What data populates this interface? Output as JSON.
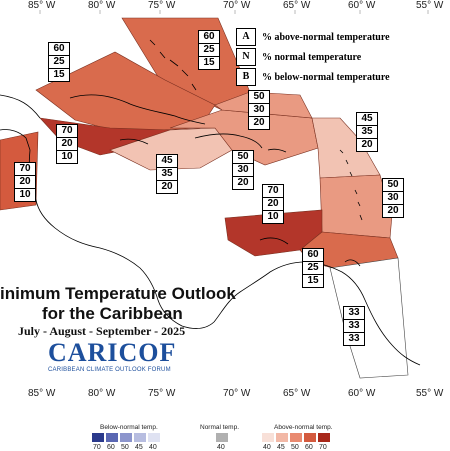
{
  "map": {
    "title_line1": "inimum Temperature Outlook",
    "title_line2": "for the Caribbean",
    "period": "July - August - September - 2025",
    "logo": "CARICOF",
    "logo_subtitle": "CARIBBEAN CLIMATE OUTLOOK FORUM",
    "longitude_labels_top": [
      "85° W",
      "80° W",
      "75° W",
      "70° W",
      "65° W",
      "60° W",
      "55° W"
    ],
    "longitude_labels_bottom": [
      "85° W",
      "80° W",
      "75° W",
      "70° W",
      "65° W",
      "60° W",
      "55° W"
    ],
    "key": [
      {
        "letter": "A",
        "text": "% above-normal temperature"
      },
      {
        "letter": "N",
        "text": "% normal temperature"
      },
      {
        "letter": "B",
        "text": "% below-normal temperature"
      }
    ],
    "forecast_boxes": [
      {
        "name": "bahamas",
        "A": "60",
        "N": "25",
        "B": "15"
      },
      {
        "name": "cuba",
        "A": "60",
        "N": "25",
        "B": "15"
      },
      {
        "name": "jamaica-cayman",
        "A": "70",
        "N": "20",
        "B": "10"
      },
      {
        "name": "belize",
        "A": "70",
        "N": "20",
        "B": "10"
      },
      {
        "name": "central-caribbean",
        "A": "45",
        "N": "35",
        "B": "20"
      },
      {
        "name": "hispaniola",
        "A": "50",
        "N": "30",
        "B": "20"
      },
      {
        "name": "turks-caicos",
        "A": "50",
        "N": "30",
        "B": "20"
      },
      {
        "name": "leeward-islands",
        "A": "45",
        "N": "35",
        "B": "20"
      },
      {
        "name": "windward-islands",
        "A": "50",
        "N": "30",
        "B": "20"
      },
      {
        "name": "abc-islands",
        "A": "70",
        "N": "20",
        "B": "10"
      },
      {
        "name": "trinidad-tobago",
        "A": "60",
        "N": "25",
        "B": "15"
      },
      {
        "name": "guianas",
        "A": "33",
        "N": "33",
        "B": "33"
      }
    ],
    "legend": {
      "below_title": "Below-normal temp.",
      "normal_title": "Normal temp.",
      "above_title": "Above-normal temp.",
      "below_values": [
        "70",
        "60",
        "50",
        "45",
        "40"
      ],
      "normal_values": [
        "40"
      ],
      "above_values": [
        "40",
        "45",
        "50",
        "60",
        "70"
      ],
      "below_colors": [
        "#2b3a8c",
        "#5a67b3",
        "#8c95cc",
        "#b7bde0",
        "#dfe2f2"
      ],
      "normal_colors": [
        "#b0b0b0"
      ],
      "above_colors": [
        "#f8e0d8",
        "#f2b8a6",
        "#e98a70",
        "#d45a3e",
        "#a8281a"
      ]
    },
    "colors": {
      "above_40_45": "#f2c3b3",
      "above_50": "#e99a82",
      "above_60": "#d96b4d",
      "above_70": "#b3362a"
    }
  }
}
